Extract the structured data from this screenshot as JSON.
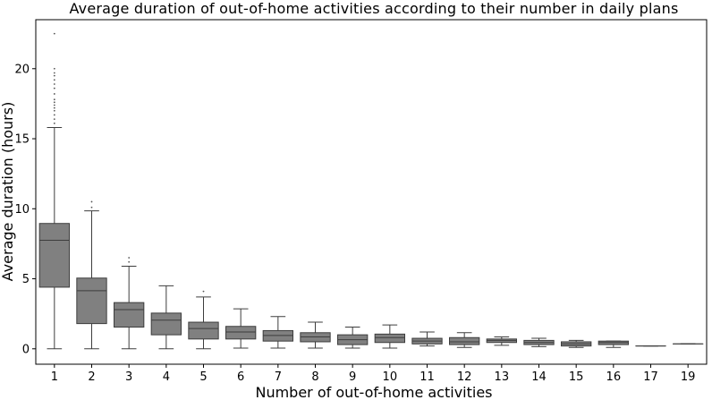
{
  "chart_data": {
    "type": "box",
    "title": "Average duration of out-of-home activities according to their number in daily plans",
    "xlabel": "Number of out-of-home activities",
    "ylabel": "Average duration (hours)",
    "ylim": [
      -1.1,
      23.5
    ],
    "yticks": [
      0,
      5,
      10,
      15,
      20
    ],
    "grid": false,
    "box_color": "#808080",
    "categories": [
      "1",
      "2",
      "3",
      "4",
      "5",
      "6",
      "7",
      "8",
      "9",
      "10",
      "11",
      "12",
      "13",
      "14",
      "15",
      "16",
      "17",
      "19"
    ],
    "boxes": [
      {
        "category": "1",
        "whisker_low": 0.0,
        "q1": 4.4,
        "median": 7.75,
        "q3": 8.95,
        "whisker_high": 15.8,
        "outliers": [
          16.1,
          16.4,
          16.7,
          17.0,
          17.2,
          17.4,
          17.6,
          17.8,
          18.2,
          18.6,
          18.9,
          19.2,
          19.5,
          19.7,
          20.0,
          22.5
        ]
      },
      {
        "category": "2",
        "whisker_low": 0.0,
        "q1": 1.8,
        "median": 4.15,
        "q3": 5.05,
        "whisker_high": 9.85,
        "outliers": [
          10.1,
          10.5
        ]
      },
      {
        "category": "3",
        "whisker_low": 0.0,
        "q1": 1.55,
        "median": 2.8,
        "q3": 3.3,
        "whisker_high": 5.9,
        "outliers": [
          6.2,
          6.5
        ]
      },
      {
        "category": "4",
        "whisker_low": 0.0,
        "q1": 1.0,
        "median": 2.05,
        "q3": 2.55,
        "whisker_high": 4.5,
        "outliers": []
      },
      {
        "category": "5",
        "whisker_low": 0.0,
        "q1": 0.7,
        "median": 1.45,
        "q3": 1.9,
        "whisker_high": 3.7,
        "outliers": [
          4.1
        ]
      },
      {
        "category": "6",
        "whisker_low": 0.05,
        "q1": 0.7,
        "median": 1.2,
        "q3": 1.6,
        "whisker_high": 2.85,
        "outliers": []
      },
      {
        "category": "7",
        "whisker_low": 0.05,
        "q1": 0.55,
        "median": 0.95,
        "q3": 1.3,
        "whisker_high": 2.3,
        "outliers": []
      },
      {
        "category": "8",
        "whisker_low": 0.05,
        "q1": 0.5,
        "median": 0.85,
        "q3": 1.15,
        "whisker_high": 1.9,
        "outliers": []
      },
      {
        "category": "9",
        "whisker_low": 0.05,
        "q1": 0.3,
        "median": 0.65,
        "q3": 1.0,
        "whisker_high": 1.55,
        "outliers": []
      },
      {
        "category": "10",
        "whisker_low": 0.05,
        "q1": 0.45,
        "median": 0.8,
        "q3": 1.05,
        "whisker_high": 1.7,
        "outliers": []
      },
      {
        "category": "11",
        "whisker_low": 0.2,
        "q1": 0.35,
        "median": 0.55,
        "q3": 0.75,
        "whisker_high": 1.2,
        "outliers": []
      },
      {
        "category": "12",
        "whisker_low": 0.1,
        "q1": 0.3,
        "median": 0.5,
        "q3": 0.8,
        "whisker_high": 1.15,
        "outliers": []
      },
      {
        "category": "13",
        "whisker_low": 0.25,
        "q1": 0.45,
        "median": 0.6,
        "q3": 0.7,
        "whisker_high": 0.85,
        "outliers": []
      },
      {
        "category": "14",
        "whisker_low": 0.15,
        "q1": 0.3,
        "median": 0.45,
        "q3": 0.6,
        "whisker_high": 0.75,
        "outliers": []
      },
      {
        "category": "15",
        "whisker_low": 0.1,
        "q1": 0.2,
        "median": 0.35,
        "q3": 0.5,
        "whisker_high": 0.6,
        "outliers": []
      },
      {
        "category": "16",
        "whisker_low": 0.1,
        "q1": 0.3,
        "median": 0.45,
        "q3": 0.55,
        "whisker_high": 0.55,
        "outliers": []
      },
      {
        "category": "17",
        "whisker_low": 0.2,
        "q1": 0.2,
        "median": 0.2,
        "q3": 0.2,
        "whisker_high": 0.2,
        "outliers": []
      },
      {
        "category": "19",
        "whisker_low": 0.35,
        "q1": 0.35,
        "median": 0.35,
        "q3": 0.35,
        "whisker_high": 0.35,
        "outliers": []
      }
    ]
  }
}
